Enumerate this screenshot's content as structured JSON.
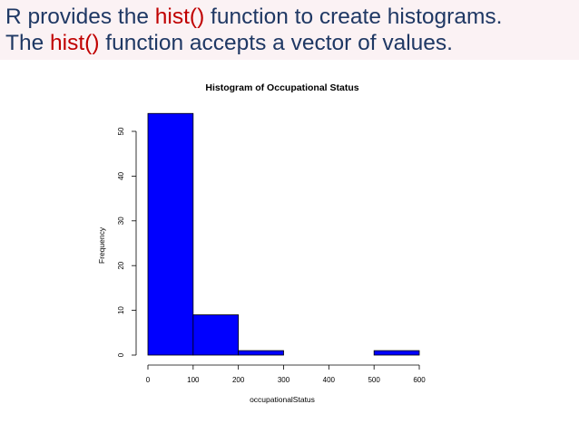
{
  "slide": {
    "line1": {
      "before": "R provides the ",
      "highlight": "hist()",
      "after": " function to create histograms."
    },
    "line2": {
      "before": "The ",
      "highlight": "hist()",
      "after": " function accepts a vector of values."
    }
  },
  "colors": {
    "text": "#1f3864",
    "highlight": "#c00000",
    "header_bg": "#fbf2f4",
    "bar_fill": "#0000ff",
    "bar_stroke": "#000000"
  },
  "chart_data": {
    "type": "bar",
    "subtype": "histogram",
    "title": "Histogram of Occupational Status",
    "xlabel": "occupationalStatus",
    "ylabel": "Frequency",
    "bins": [
      {
        "from": 0,
        "to": 100,
        "count": 54
      },
      {
        "from": 100,
        "to": 200,
        "count": 9
      },
      {
        "from": 200,
        "to": 300,
        "count": 1
      },
      {
        "from": 300,
        "to": 400,
        "count": 0
      },
      {
        "from": 400,
        "to": 500,
        "count": 0
      },
      {
        "from": 500,
        "to": 600,
        "count": 1
      }
    ],
    "xlim": [
      0,
      600
    ],
    "ylim": [
      0,
      50
    ],
    "xticks": [
      0,
      100,
      200,
      300,
      400,
      500,
      600
    ],
    "yticks": [
      0,
      10,
      20,
      30,
      40,
      50
    ],
    "grid": false,
    "legend": "none"
  }
}
